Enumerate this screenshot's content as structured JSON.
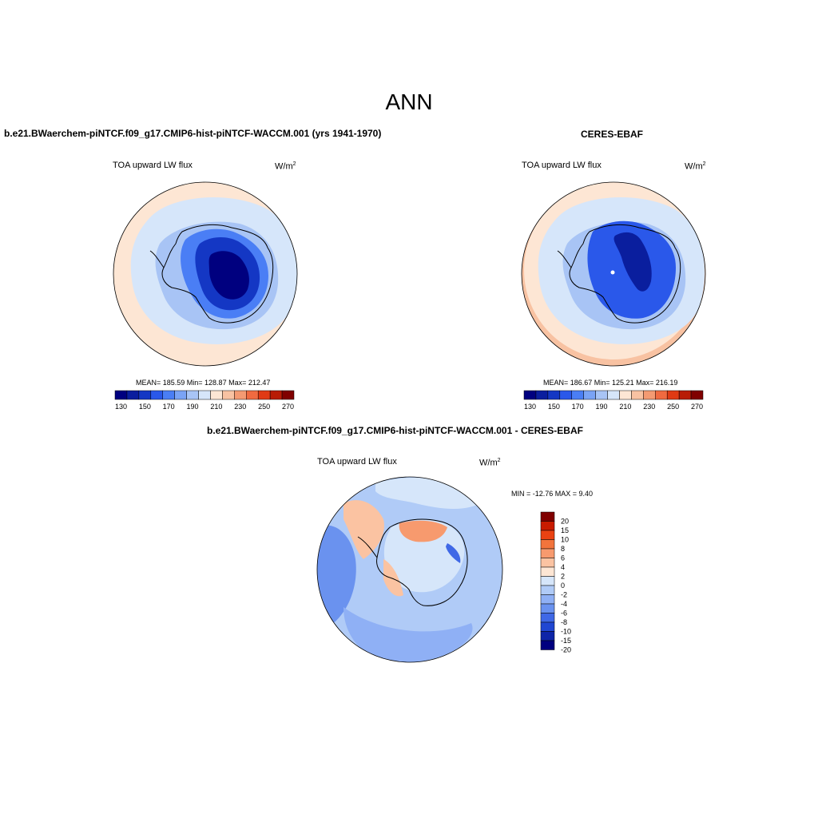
{
  "page": {
    "title": "ANN"
  },
  "panels": [
    {
      "id": "model",
      "header": "b.e21.BWaerchem-piNTCF.f09_g17.CMIP6-hist-piNTCF-WACCM.001 (yrs 1941-1970)",
      "variable": "TOA upward LW flux",
      "units_base": "W/m",
      "units_exp": "2",
      "stats": "MEAN= 185.59  Min= 128.87  Max= 212.47"
    },
    {
      "id": "obs",
      "header": "CERES-EBAF",
      "variable": "TOA upward LW flux",
      "units_base": "W/m",
      "units_exp": "2",
      "stats": "MEAN= 186.67  Min= 125.21  Max= 216.19"
    },
    {
      "id": "diff",
      "header": "b.e21.BWaerchem-piNTCF.f09_g17.CMIP6-hist-piNTCF-WACCM.001 - CERES-EBAF",
      "variable": "TOA upward LW flux",
      "units_base": "W/m",
      "units_exp": "2",
      "stats": "MIN = -12.76 MAX =   9.40"
    }
  ],
  "abs_colorbar": {
    "colors": [
      "#00007f",
      "#0a1e9e",
      "#1437c4",
      "#2a58ea",
      "#4a7ef5",
      "#7aa3f5",
      "#a8c4f5",
      "#d6e6fa",
      "#fde6d4",
      "#f8c2a2",
      "#f49a72",
      "#f06a40",
      "#e03a14",
      "#b81c06",
      "#800000"
    ],
    "labels": [
      "130",
      "150",
      "170",
      "190",
      "210",
      "230",
      "250",
      "270"
    ]
  },
  "diff_colorbar": {
    "colors": [
      "#800000",
      "#c81b00",
      "#ea4212",
      "#f2743c",
      "#f79a6e",
      "#fbc3a2",
      "#fde6d4",
      "#d6e6fa",
      "#b0cbf7",
      "#8fb0f5",
      "#6a92ef",
      "#3f68e6",
      "#2047d2",
      "#0e25a8",
      "#00007f"
    ],
    "labels": [
      "20",
      "15",
      "10",
      "8",
      "6",
      "4",
      "2",
      "0",
      "-2",
      "-4",
      "-6",
      "-8",
      "-10",
      "-15",
      "-20"
    ]
  }
}
